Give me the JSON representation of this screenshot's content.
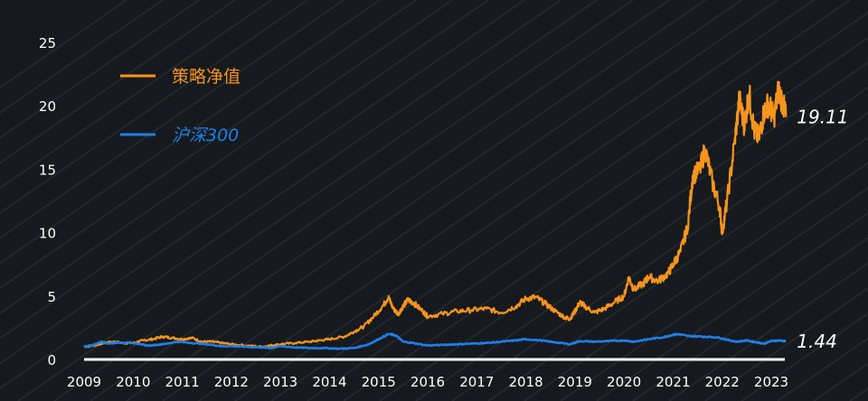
{
  "chart_data": {
    "type": "line",
    "title": "",
    "xlabel": "",
    "ylabel": "",
    "xlim": [
      2009,
      2023.35
    ],
    "ylim": [
      0,
      25
    ],
    "x_ticks": [
      "2009",
      "2010",
      "2011",
      "2012",
      "2013",
      "2014",
      "2015",
      "2016",
      "2017",
      "2018",
      "2019",
      "2020",
      "2021",
      "2022",
      "2023"
    ],
    "y_ticks": [
      "0",
      "5",
      "10",
      "15",
      "20",
      "25"
    ],
    "grid": false,
    "legend_position": "top-left",
    "series": [
      {
        "name": "策略净值",
        "color": "#f7941d",
        "end_label": "19.11",
        "points": [
          [
            2009.0,
            1.0
          ],
          [
            2009.2,
            1.1
          ],
          [
            2009.4,
            1.3
          ],
          [
            2009.6,
            1.4
          ],
          [
            2009.8,
            1.3
          ],
          [
            2010.0,
            1.3
          ],
          [
            2010.2,
            1.5
          ],
          [
            2010.4,
            1.6
          ],
          [
            2010.6,
            1.8
          ],
          [
            2010.8,
            1.7
          ],
          [
            2011.0,
            1.6
          ],
          [
            2011.2,
            1.7
          ],
          [
            2011.4,
            1.4
          ],
          [
            2011.6,
            1.4
          ],
          [
            2011.8,
            1.3
          ],
          [
            2012.0,
            1.2
          ],
          [
            2012.3,
            1.1
          ],
          [
            2012.6,
            1.0
          ],
          [
            2012.8,
            1.1
          ],
          [
            2013.0,
            1.2
          ],
          [
            2013.3,
            1.3
          ],
          [
            2013.6,
            1.4
          ],
          [
            2013.8,
            1.5
          ],
          [
            2014.0,
            1.6
          ],
          [
            2014.3,
            1.8
          ],
          [
            2014.5,
            2.2
          ],
          [
            2014.7,
            2.6
          ],
          [
            2014.9,
            3.4
          ],
          [
            2015.1,
            4.3
          ],
          [
            2015.2,
            4.9
          ],
          [
            2015.3,
            4.0
          ],
          [
            2015.4,
            3.6
          ],
          [
            2015.5,
            4.2
          ],
          [
            2015.6,
            4.7
          ],
          [
            2015.7,
            4.5
          ],
          [
            2015.9,
            3.8
          ],
          [
            2016.0,
            3.4
          ],
          [
            2016.3,
            3.6
          ],
          [
            2016.6,
            3.8
          ],
          [
            2016.9,
            3.9
          ],
          [
            2017.2,
            4.0
          ],
          [
            2017.5,
            3.7
          ],
          [
            2017.8,
            4.2
          ],
          [
            2018.0,
            4.8
          ],
          [
            2018.2,
            4.9
          ],
          [
            2018.4,
            4.4
          ],
          [
            2018.6,
            3.8
          ],
          [
            2018.8,
            3.3
          ],
          [
            2018.9,
            3.2
          ],
          [
            2019.0,
            3.8
          ],
          [
            2019.1,
            4.5
          ],
          [
            2019.2,
            4.2
          ],
          [
            2019.4,
            3.7
          ],
          [
            2019.6,
            4.0
          ],
          [
            2019.8,
            4.5
          ],
          [
            2020.0,
            5.0
          ],
          [
            2020.1,
            6.5
          ],
          [
            2020.2,
            5.5
          ],
          [
            2020.4,
            6.0
          ],
          [
            2020.5,
            6.5
          ],
          [
            2020.7,
            6.2
          ],
          [
            2020.9,
            6.8
          ],
          [
            2021.0,
            7.5
          ],
          [
            2021.15,
            8.5
          ],
          [
            2021.3,
            10.5
          ],
          [
            2021.4,
            14.5
          ],
          [
            2021.55,
            15.0
          ],
          [
            2021.65,
            16.6
          ],
          [
            2021.8,
            14.0
          ],
          [
            2021.95,
            12.0
          ],
          [
            2022.0,
            10.0
          ],
          [
            2022.1,
            12.5
          ],
          [
            2022.25,
            17.0
          ],
          [
            2022.35,
            20.5
          ],
          [
            2022.45,
            18.5
          ],
          [
            2022.55,
            21.0
          ],
          [
            2022.65,
            18.0
          ],
          [
            2022.75,
            17.5
          ],
          [
            2022.85,
            19.5
          ],
          [
            2022.95,
            20.2
          ],
          [
            2023.05,
            19.0
          ],
          [
            2023.15,
            21.3
          ],
          [
            2023.25,
            20.0
          ],
          [
            2023.3,
            19.11
          ]
        ]
      },
      {
        "name": "沪深300",
        "color": "#1e7ee8",
        "end_label": "1.44",
        "points": [
          [
            2009.0,
            1.0
          ],
          [
            2009.2,
            1.15
          ],
          [
            2009.35,
            1.4
          ],
          [
            2009.5,
            1.25
          ],
          [
            2009.7,
            1.35
          ],
          [
            2010.0,
            1.3
          ],
          [
            2010.3,
            1.1
          ],
          [
            2010.6,
            1.2
          ],
          [
            2010.9,
            1.4
          ],
          [
            2011.2,
            1.3
          ],
          [
            2011.5,
            1.2
          ],
          [
            2011.8,
            1.05
          ],
          [
            2012.0,
            1.05
          ],
          [
            2012.3,
            1.0
          ],
          [
            2012.6,
            0.95
          ],
          [
            2012.8,
            0.9
          ],
          [
            2013.0,
            1.05
          ],
          [
            2013.3,
            0.95
          ],
          [
            2013.6,
            0.9
          ],
          [
            2013.9,
            0.9
          ],
          [
            2014.2,
            0.85
          ],
          [
            2014.5,
            0.9
          ],
          [
            2014.8,
            1.2
          ],
          [
            2015.0,
            1.6
          ],
          [
            2015.2,
            2.0
          ],
          [
            2015.35,
            1.9
          ],
          [
            2015.5,
            1.4
          ],
          [
            2015.7,
            1.3
          ],
          [
            2016.0,
            1.1
          ],
          [
            2016.3,
            1.15
          ],
          [
            2016.6,
            1.2
          ],
          [
            2016.9,
            1.25
          ],
          [
            2017.2,
            1.3
          ],
          [
            2017.5,
            1.4
          ],
          [
            2017.8,
            1.5
          ],
          [
            2018.0,
            1.6
          ],
          [
            2018.3,
            1.5
          ],
          [
            2018.6,
            1.35
          ],
          [
            2018.9,
            1.2
          ],
          [
            2019.1,
            1.45
          ],
          [
            2019.4,
            1.4
          ],
          [
            2019.7,
            1.45
          ],
          [
            2020.0,
            1.5
          ],
          [
            2020.2,
            1.4
          ],
          [
            2020.5,
            1.6
          ],
          [
            2020.8,
            1.75
          ],
          [
            2021.0,
            1.95
          ],
          [
            2021.1,
            2.0
          ],
          [
            2021.3,
            1.85
          ],
          [
            2021.6,
            1.8
          ],
          [
            2021.9,
            1.75
          ],
          [
            2022.1,
            1.55
          ],
          [
            2022.3,
            1.4
          ],
          [
            2022.5,
            1.5
          ],
          [
            2022.7,
            1.35
          ],
          [
            2022.85,
            1.25
          ],
          [
            2023.0,
            1.45
          ],
          [
            2023.15,
            1.5
          ],
          [
            2023.3,
            1.44
          ]
        ]
      }
    ]
  }
}
